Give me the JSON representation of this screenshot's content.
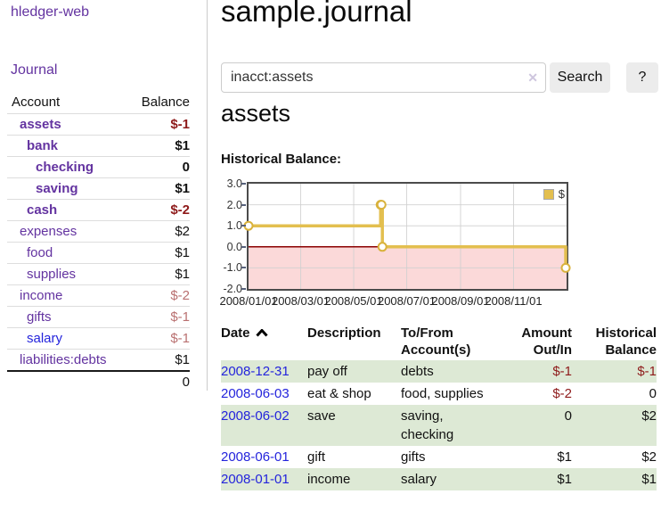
{
  "app": {
    "brand": "hledger-web",
    "nav_journal": "Journal"
  },
  "colors": {
    "link_purple": "#6333a0",
    "link_blue": "#2424dc",
    "negative_strong": "#8e1a1a",
    "negative_soft": "#b97070",
    "row_stripe_green": "#dde9d5",
    "chart_negative_pink": "#fbd9d9",
    "chart_zero_line": "#8b0000",
    "chart_line_gold": "#e3bf4f"
  },
  "sidebar": {
    "headers": [
      "Account",
      "Balance"
    ],
    "accounts": [
      {
        "name": "assets",
        "indent": 1,
        "bold": true,
        "balance": "$-1",
        "balance_tone": "neg-strong"
      },
      {
        "name": "bank",
        "indent": 2,
        "bold": true,
        "balance": "$1",
        "balance_tone": "normal"
      },
      {
        "name": "checking",
        "indent": 3,
        "bold": true,
        "balance": "0",
        "balance_tone": "normal"
      },
      {
        "name": "saving",
        "indent": 3,
        "bold": true,
        "balance": "$1",
        "balance_tone": "normal"
      },
      {
        "name": "cash",
        "indent": 2,
        "bold": true,
        "balance": "$-2",
        "balance_tone": "neg-strong"
      },
      {
        "name": "expenses",
        "indent": 1,
        "bold": false,
        "balance": "$2",
        "balance_tone": "normal"
      },
      {
        "name": "food",
        "indent": 2,
        "bold": false,
        "balance": "$1",
        "balance_tone": "normal"
      },
      {
        "name": "supplies",
        "indent": 2,
        "bold": false,
        "balance": "$1",
        "balance_tone": "normal"
      },
      {
        "name": "income",
        "indent": 1,
        "bold": false,
        "balance": "$-2",
        "balance_tone": "neg-soft"
      },
      {
        "name": "gifts",
        "indent": 2,
        "bold": false,
        "balance": "$-1",
        "balance_tone": "neg-soft"
      },
      {
        "name": "salary",
        "indent": 2,
        "bold": false,
        "balance": "$-1",
        "balance_tone": "neg-soft",
        "link_blue": true
      },
      {
        "name": "liabilities:debts",
        "indent": 1,
        "bold": false,
        "balance": "$1",
        "balance_tone": "normal"
      }
    ],
    "total": "0"
  },
  "main": {
    "title": "sample.journal",
    "search": {
      "value": "inacct:assets",
      "clear_icon": "✕",
      "button_label": "Search",
      "help_label": "?"
    },
    "account_heading": "assets",
    "chart_label": "Historical Balance:"
  },
  "chart_data": {
    "type": "line",
    "title": "Historical Balance:",
    "step": true,
    "x_range": [
      "2008-01-01",
      "2009-01-01"
    ],
    "ylim": [
      -2,
      3
    ],
    "y_ticks": [
      {
        "v": 3,
        "label": "3.0"
      },
      {
        "v": 2,
        "label": "2.0"
      },
      {
        "v": 1,
        "label": "1.0"
      },
      {
        "v": 0,
        "label": "0.0"
      },
      {
        "v": -1,
        "label": "-1.0"
      },
      {
        "v": -2,
        "label": "-2.0"
      }
    ],
    "x_ticks": [
      {
        "date": "2008-01-01",
        "label": "2008/01/01"
      },
      {
        "date": "2008-03-01",
        "label": "2008/03/01"
      },
      {
        "date": "2008-05-01",
        "label": "2008/05/01"
      },
      {
        "date": "2008-07-01",
        "label": "2008/07/01"
      },
      {
        "date": "2008-09-01",
        "label": "2008/09/01"
      },
      {
        "date": "2008-11-01",
        "label": "2008/11/01"
      }
    ],
    "grid": true,
    "legend": {
      "label": "$",
      "position": "top-right"
    },
    "series": [
      {
        "name": "$",
        "color": "#e3bf4f",
        "marker": "open-circle",
        "points": [
          [
            "2008-01-01",
            1
          ],
          [
            "2008-06-01",
            2
          ],
          [
            "2008-06-02",
            2
          ],
          [
            "2008-06-03",
            0
          ],
          [
            "2008-12-31",
            -1
          ]
        ]
      }
    ],
    "negative_region": {
      "from": 0,
      "to": -2,
      "color": "#fbd9d9",
      "zero_line_color": "#8b0000"
    }
  },
  "register": {
    "headers": [
      "Date",
      "Description",
      "To/From Account(s)",
      "Amount Out/In",
      "Historical Balance"
    ],
    "sort": {
      "column": "Date",
      "direction": "asc"
    },
    "rows": [
      {
        "date": "2008-12-31",
        "description": "pay off",
        "accounts": "debts",
        "amount": "$-1",
        "amount_neg": true,
        "balance": "$-1",
        "balance_neg": true
      },
      {
        "date": "2008-06-03",
        "description": "eat & shop",
        "accounts": "food, supplies",
        "amount": "$-2",
        "amount_neg": true,
        "balance": "0",
        "balance_neg": false
      },
      {
        "date": "2008-06-02",
        "description": "save",
        "accounts": "saving, checking",
        "amount": "0",
        "amount_neg": false,
        "balance": "$2",
        "balance_neg": false
      },
      {
        "date": "2008-06-01",
        "description": "gift",
        "accounts": "gifts",
        "amount": "$1",
        "amount_neg": false,
        "balance": "$2",
        "balance_neg": false
      },
      {
        "date": "2008-01-01",
        "description": "income",
        "accounts": "salary",
        "amount": "$1",
        "amount_neg": false,
        "balance": "$1",
        "balance_neg": false
      }
    ]
  }
}
